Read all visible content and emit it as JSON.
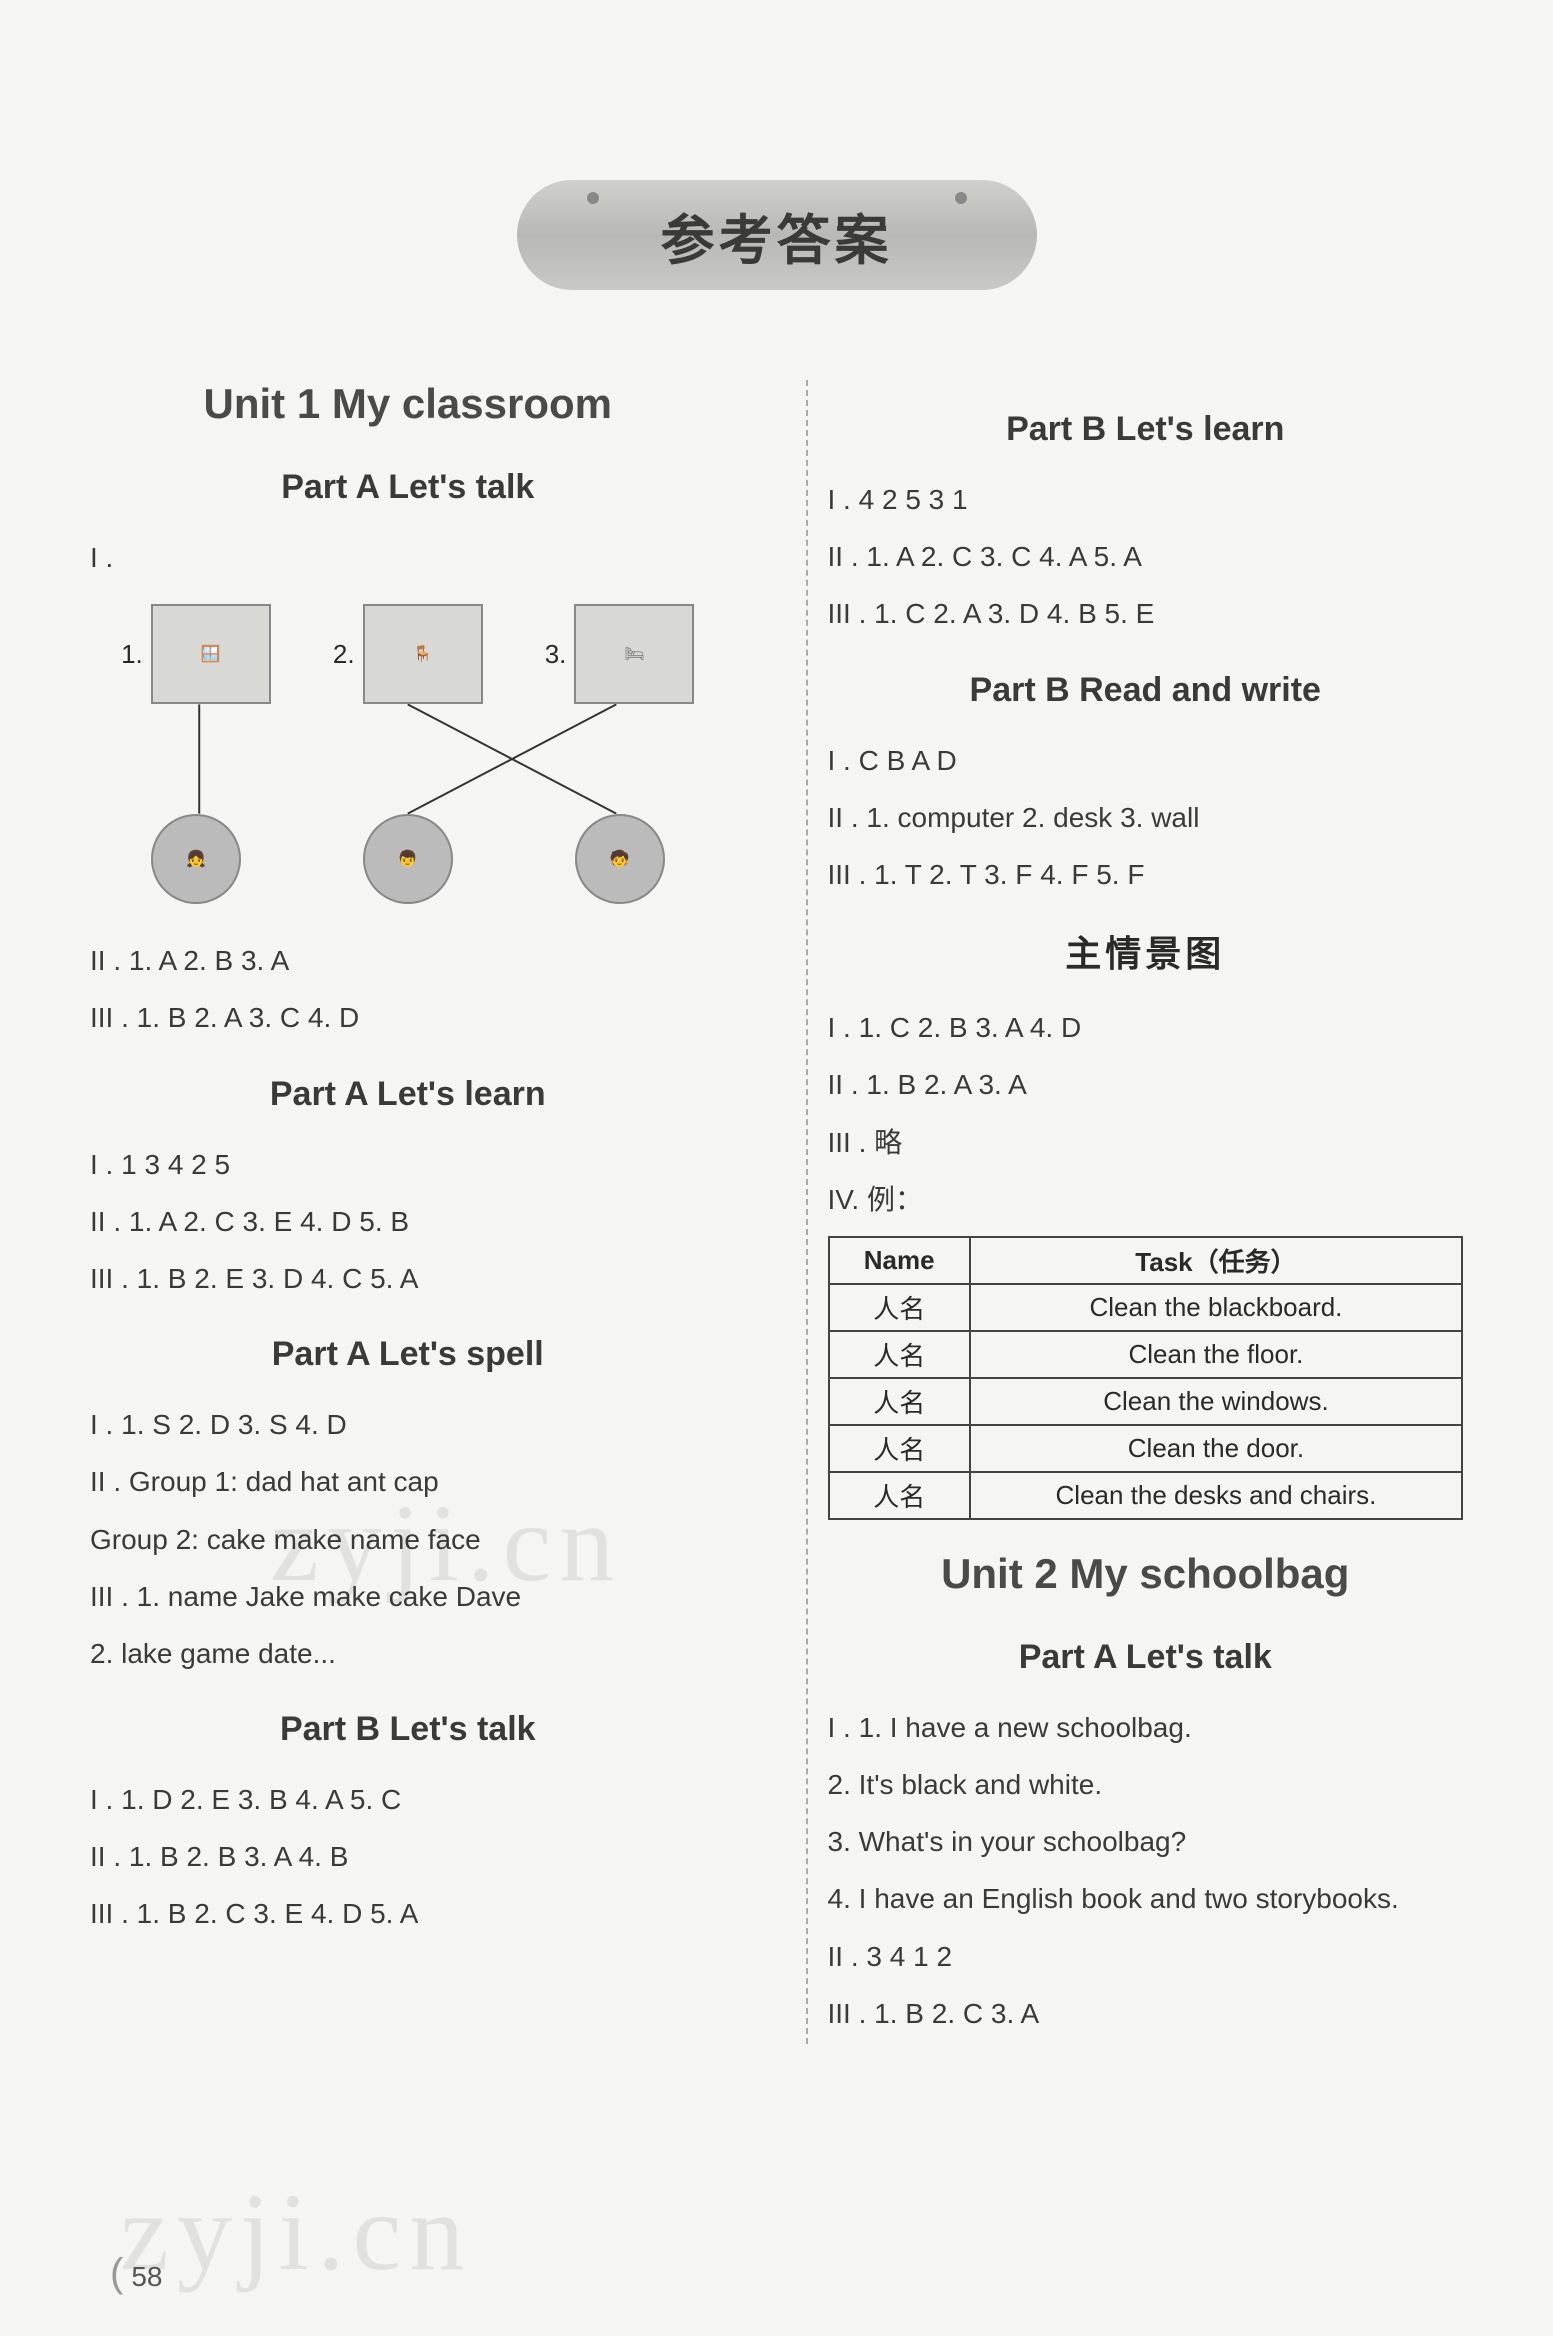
{
  "header": "参考答案",
  "pageNumber": "58",
  "watermark": "zyji.cn",
  "left": {
    "unitTitle": "Unit 1  My classroom",
    "sections": [
      {
        "title": "Part A  Let's talk",
        "lines": [
          "I .",
          "II . 1. A   2. B   3. A",
          "III . 1. B   2. A   3. C   4. D"
        ],
        "matching": {
          "topLabels": [
            "1.",
            "2.",
            "3."
          ],
          "topItems": [
            "window",
            "chair",
            "desk"
          ],
          "bottomItems": [
            "person1",
            "person2",
            "person3"
          ]
        }
      },
      {
        "title": "Part A  Let's learn",
        "lines": [
          "I . 1   3   4   2   5",
          "II . 1. A   2. C   3. E   4. D   5. B",
          "III . 1. B   2. E   3. D   4. C   5. A"
        ]
      },
      {
        "title": "Part A  Let's spell",
        "lines": [
          "I . 1. S   2. D   3. S   4. D",
          "II . Group 1:  dad  hat  ant  cap",
          "     Group 2:  cake  make  name  face",
          "III . 1. name  Jake  make  cake  Dave",
          "      2. lake  game  date..."
        ]
      },
      {
        "title": "Part B  Let's talk",
        "lines": [
          "I . 1. D   2. E   3. B   4. A   5. C",
          "II . 1. B   2. B   3. A   4. B",
          "III . 1. B   2. C   3. E   4. D   5. A"
        ]
      }
    ]
  },
  "right": {
    "sections": [
      {
        "title": "Part B  Let's learn",
        "lines": [
          "I . 4   2   5   3   1",
          "II . 1. A   2. C   3. C   4. A   5. A",
          "III . 1. C   2. A   3. D   4. B   5. E"
        ]
      },
      {
        "title": "Part B  Read and write",
        "lines": [
          "I . C  B  A  D",
          "II . 1. computer   2. desk   3. wall",
          "III . 1. T   2. T   3. F   4. F   5. F"
        ]
      }
    ],
    "sceneTitle": "主情景图",
    "sceneLines": [
      "I . 1. C   2. B   3. A   4. D",
      "II . 1. B  2. A  3. A",
      "III . 略",
      "IV. 例："
    ],
    "table": {
      "headers": [
        "Name",
        "Task（任务）"
      ],
      "rows": [
        [
          "人名",
          "Clean the blackboard."
        ],
        [
          "人名",
          "Clean the floor."
        ],
        [
          "人名",
          "Clean the windows."
        ],
        [
          "人名",
          "Clean the door."
        ],
        [
          "人名",
          "Clean the desks and chairs."
        ]
      ]
    },
    "unit2Title": "Unit 2  My schoolbag",
    "unit2Section": {
      "title": "Part A  Let's talk",
      "lines": [
        "I . 1. I have a new schoolbag.",
        "    2. It's black and white.",
        "    3. What's in your schoolbag?",
        "    4. I have an English book and two storybooks.",
        "II . 3   4   1   2",
        "III . 1. B   2. C   3. A"
      ]
    }
  }
}
